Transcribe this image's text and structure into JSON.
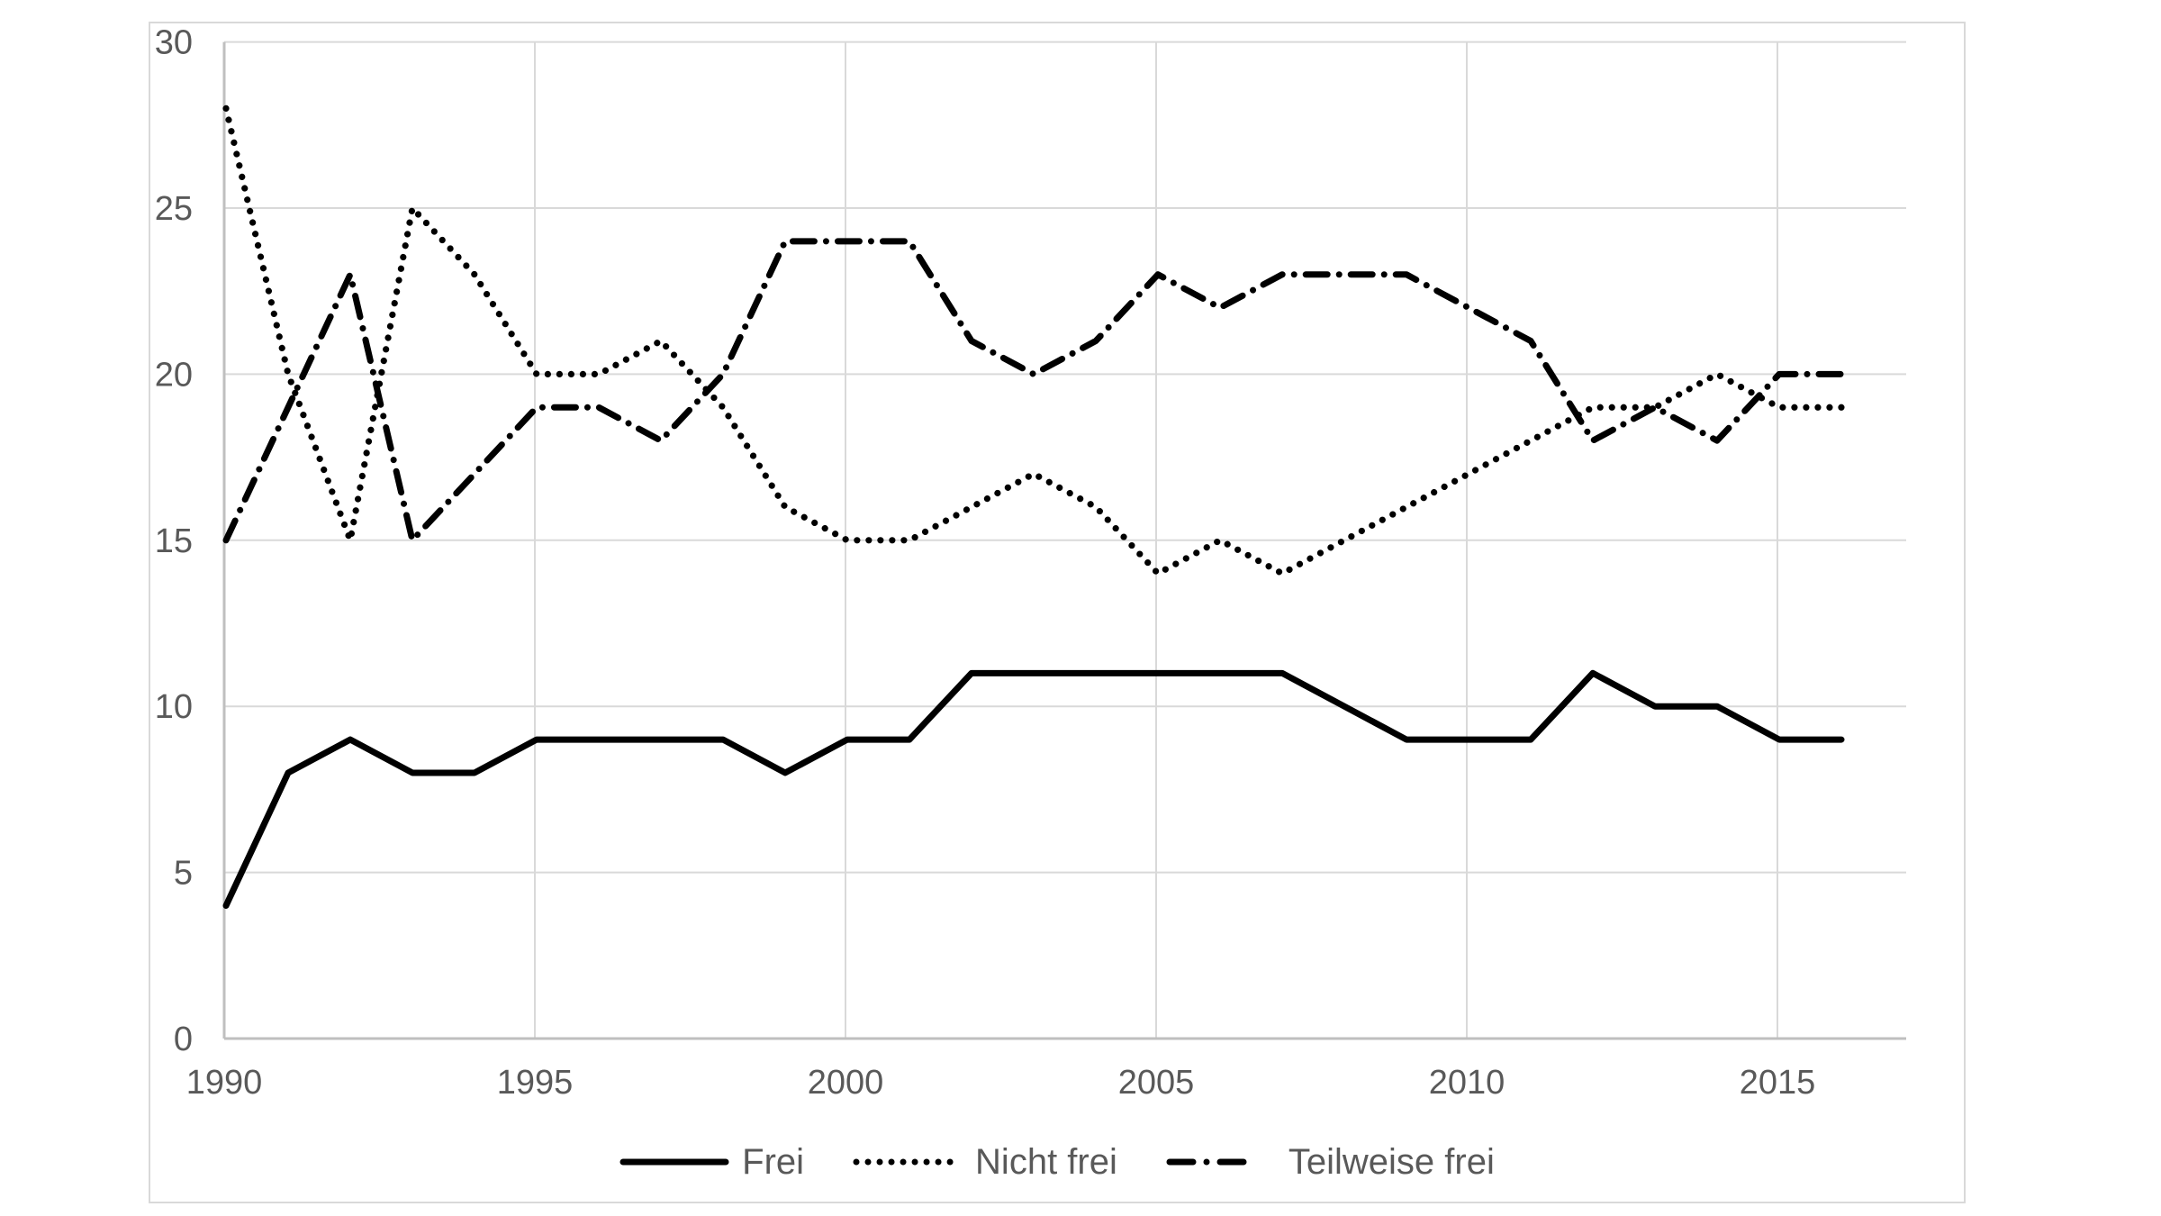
{
  "chart_data": {
    "type": "line",
    "title": "",
    "xlabel": "",
    "ylabel": "",
    "x": [
      1990,
      1991,
      1992,
      1993,
      1994,
      1995,
      1996,
      1997,
      1998,
      1999,
      2000,
      2001,
      2002,
      2003,
      2004,
      2005,
      2006,
      2007,
      2008,
      2009,
      2010,
      2011,
      2012,
      2013,
      2014,
      2015,
      2016
    ],
    "series": [
      {
        "name": "Frei",
        "style": "solid",
        "values": [
          4,
          8,
          9,
          8,
          8,
          9,
          9,
          9,
          9,
          8,
          9,
          9,
          11,
          11,
          11,
          11,
          11,
          11,
          10,
          9,
          9,
          9,
          11,
          10,
          10,
          9,
          9
        ]
      },
      {
        "name": "Nicht frei",
        "style": "dotted",
        "values": [
          28,
          20,
          15,
          25,
          23,
          20,
          20,
          21,
          19,
          16,
          15,
          15,
          16,
          17,
          16,
          14,
          15,
          14,
          15,
          16,
          17,
          18,
          19,
          19,
          20,
          19,
          19
        ]
      },
      {
        "name": "Teilweise frei",
        "style": "dash-dot",
        "values": [
          15,
          19,
          23,
          15,
          17,
          19,
          19,
          18,
          20,
          24,
          24,
          24,
          21,
          20,
          21,
          23,
          22,
          23,
          23,
          23,
          22,
          21,
          18,
          19,
          18,
          20,
          20
        ]
      }
    ],
    "ylim": [
      0,
      30
    ],
    "yticks": [
      0,
      5,
      10,
      15,
      20,
      25,
      30
    ],
    "xticks": [
      1990,
      1995,
      2000,
      2005,
      2010,
      2015
    ],
    "grid": true,
    "legend_position": "bottom",
    "colors": {
      "line": "#000000",
      "gridline": "#d9d9d9",
      "axis_line": "#bfbfbf",
      "tick_label": "#595959",
      "background": "#ffffff",
      "frame_border": "#d9d9d9"
    }
  }
}
